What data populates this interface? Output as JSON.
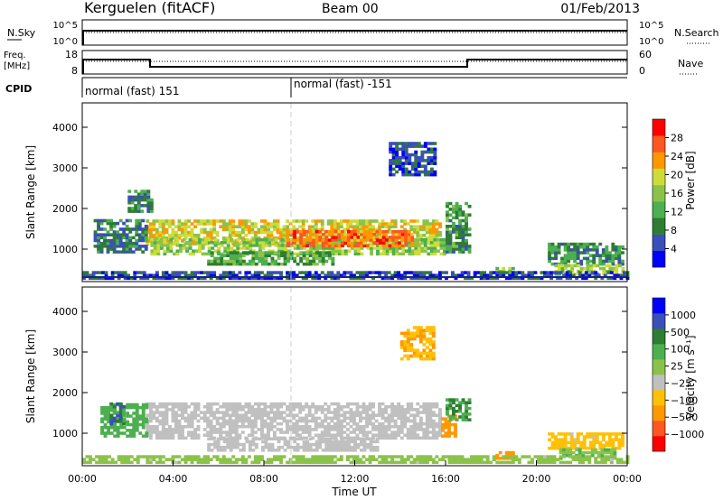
{
  "header": {
    "station": "Kerguelen (fitACF)",
    "beam": "Beam 00",
    "date": "01/Feb/2013"
  },
  "panels": {
    "nsky": {
      "label": "N.Sky",
      "left_ticks": [
        "10^5",
        "10^0"
      ],
      "right_label": "N.Search",
      "right_ticks": [
        "10^5",
        "10^0"
      ]
    },
    "freq": {
      "label_line1": "Freq.",
      "label_line2": "[MHz]",
      "left_ticks": [
        "18",
        "8"
      ],
      "right_label": "Nave",
      "right_ticks": [
        "60",
        "0"
      ]
    },
    "cpid": {
      "label": "CPID",
      "segments": [
        "normal (fast) 151",
        "normal (fast) -151"
      ]
    }
  },
  "chart_data": [
    {
      "type": "heatmap",
      "quantity": "power",
      "ylabel": "Slant Range [km]",
      "xlabel": "",
      "ylim": [
        200,
        4600
      ],
      "yticks": [
        "1000",
        "2000",
        "3000",
        "4000"
      ],
      "colorbar": {
        "label": "Power [dB]",
        "ticks": [
          "28",
          "24",
          "20",
          "16",
          "12",
          "8",
          "4"
        ],
        "colors": [
          "#0000ff",
          "#3b4fb8",
          "#2e7d32",
          "#4caf50",
          "#8bc34a",
          "#cddc39",
          "#ff9800",
          "#ff5722",
          "#ff0000"
        ]
      },
      "bands": [
        {
          "t": [
            2.8,
            15.8
          ],
          "r": [
            1100,
            1700
          ],
          "level": 22
        },
        {
          "t": [
            3.0,
            16.0
          ],
          "r": [
            850,
            1250
          ],
          "level": 18
        },
        {
          "t": [
            9.0,
            14.5
          ],
          "r": [
            1050,
            1450
          ],
          "level": 28
        },
        {
          "t": [
            5.5,
            11.0
          ],
          "r": [
            600,
            900
          ],
          "level": 14
        },
        {
          "t": [
            0.5,
            2.8
          ],
          "r": [
            900,
            1700
          ],
          "level": 9
        },
        {
          "t": [
            2.0,
            3.0
          ],
          "r": [
            1900,
            2400
          ],
          "level": 10
        },
        {
          "t": [
            16.0,
            17.0
          ],
          "r": [
            900,
            2100
          ],
          "level": 12
        },
        {
          "t": [
            20.5,
            23.8
          ],
          "r": [
            600,
            1100
          ],
          "level": 11
        },
        {
          "t": [
            20.8,
            23.8
          ],
          "r": [
            350,
            600
          ],
          "level": 19
        },
        {
          "t": [
            18.2,
            19.0
          ],
          "r": [
            350,
            500
          ],
          "level": 20
        },
        {
          "t": [
            13.5,
            15.5
          ],
          "r": [
            2800,
            3600
          ],
          "level": 6
        },
        {
          "t": [
            0.0,
            24.0
          ],
          "r": [
            250,
            450
          ],
          "level": 6
        }
      ]
    },
    {
      "type": "heatmap",
      "quantity": "velocity",
      "ylabel": "Slant Range [km]",
      "xlabel": "Time UT",
      "ylim": [
        200,
        4600
      ],
      "yticks": [
        "1000",
        "2000",
        "3000",
        "4000"
      ],
      "xticks": [
        "00:00",
        "04:00",
        "08:00",
        "12:00",
        "16:00",
        "20:00",
        "00:00"
      ],
      "colorbar": {
        "label": "Velocity [m s⁻¹]",
        "ticks": [
          "1000",
          "500",
          "100",
          "25",
          "−25",
          "−100",
          "−500",
          "−1000"
        ],
        "colors": [
          "#ff0000",
          "#ff5722",
          "#ff9800",
          "#ffc107",
          "#c0c0c0",
          "#8bc34a",
          "#4caf50",
          "#2e7d32",
          "#3b4fb8",
          "#0000ff"
        ]
      },
      "bands": [
        {
          "t": [
            2.8,
            15.8
          ],
          "r": [
            850,
            1750
          ],
          "level": 0
        },
        {
          "t": [
            5.5,
            13.0
          ],
          "r": [
            550,
            900
          ],
          "level": 0
        },
        {
          "t": [
            0.8,
            2.8
          ],
          "r": [
            900,
            1700
          ],
          "level": 250
        },
        {
          "t": [
            1.2,
            1.8
          ],
          "r": [
            1200,
            1700
          ],
          "level": 900
        },
        {
          "t": [
            15.8,
            16.5
          ],
          "r": [
            900,
            1400
          ],
          "level": -300
        },
        {
          "t": [
            16.0,
            17.0
          ],
          "r": [
            1300,
            1800
          ],
          "level": 400
        },
        {
          "t": [
            20.5,
            23.8
          ],
          "r": [
            600,
            1000
          ],
          "level": -60
        },
        {
          "t": [
            21.0,
            23.5
          ],
          "r": [
            350,
            600
          ],
          "level": 80
        },
        {
          "t": [
            18.2,
            19.0
          ],
          "r": [
            350,
            500
          ],
          "level": -200
        },
        {
          "t": [
            14.0,
            15.5
          ],
          "r": [
            2800,
            3600
          ],
          "level": -90
        },
        {
          "t": [
            0.0,
            24.0
          ],
          "r": [
            250,
            450
          ],
          "level": 60
        }
      ]
    }
  ]
}
